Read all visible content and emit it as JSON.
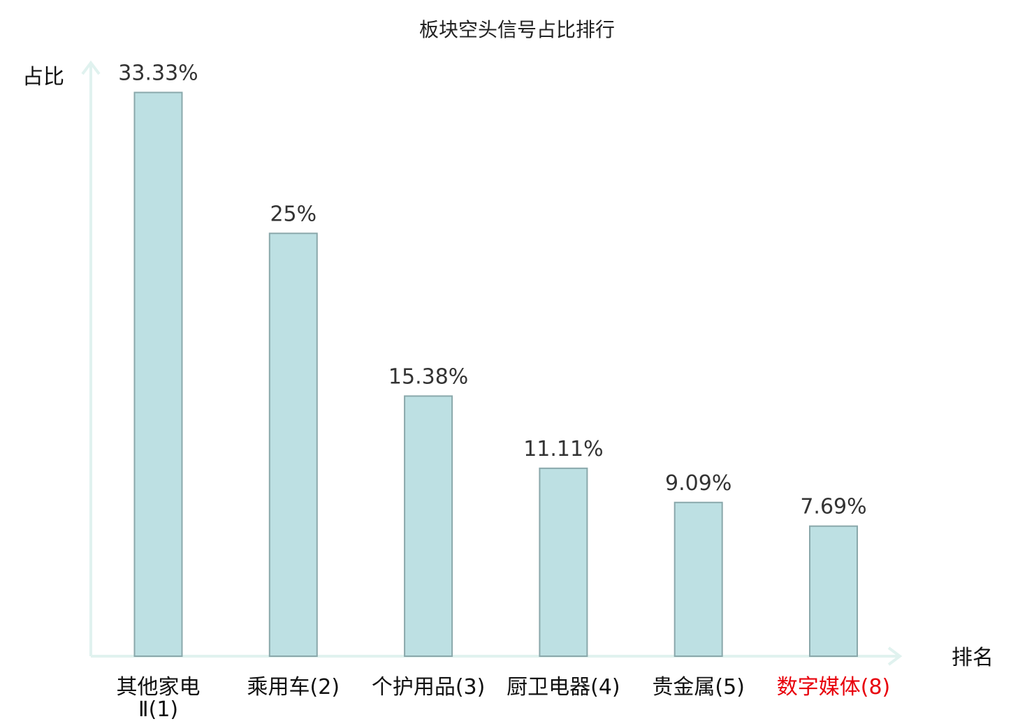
{
  "chart_data": {
    "type": "bar",
    "title": "板块空头信号占比排行",
    "xlabel": "排名",
    "ylabel": "占比",
    "categories": [
      [
        "其他家电",
        "Ⅱ(1)"
      ],
      [
        "乘用车(2)"
      ],
      [
        "个护用品(3)"
      ],
      [
        "厨卫电器(4)"
      ],
      [
        "贵金属(5)"
      ],
      [
        "数字媒体(8)"
      ]
    ],
    "values": [
      33.33,
      25,
      15.38,
      11.11,
      9.09,
      7.69
    ],
    "value_labels": [
      "33.33%",
      "25%",
      "15.38%",
      "11.11%",
      "9.09%",
      "7.69%"
    ],
    "highlight_index": 5,
    "ylim": [
      0,
      35
    ],
    "grid": false,
    "colors": {
      "bar_fill": "#bde0e3",
      "bar_stroke": "#8aa8ab",
      "axis": "#e0f2ef",
      "label": "#111111",
      "highlight_label": "#e8000b"
    }
  }
}
